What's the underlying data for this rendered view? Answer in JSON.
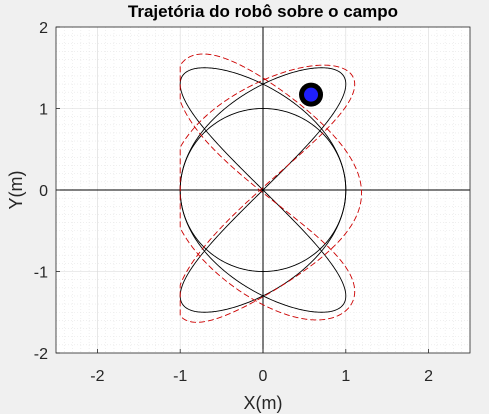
{
  "chart_data": {
    "type": "line",
    "title": "Trajetória do robô sobre o campo",
    "xlabel": "X(m)",
    "ylabel": "Y(m)",
    "xlim": [
      -2.5,
      2.5
    ],
    "ylim": [
      -2,
      2
    ],
    "xticks": [
      "-2",
      "-1",
      "0",
      "1",
      "2"
    ],
    "yticks": [
      "-2",
      "-1",
      "0",
      "1",
      "2"
    ],
    "grid": "minor",
    "series": [
      {
        "style": "solid",
        "color": "#000000",
        "kind": "circle",
        "center": [
          0,
          0
        ],
        "radius": 1
      },
      {
        "style": "solid",
        "color": "#000000",
        "kind": "lissajous",
        "ax": 1,
        "ay": 1.5,
        "fx": 3,
        "fy": 2
      },
      {
        "style": "dashed",
        "color": "#cc0000",
        "kind": "lissajous-noisy",
        "ax": 1.1,
        "ay": 1.6,
        "fx": 3,
        "fy": 2,
        "x_range": [
          -1.0,
          1.22
        ]
      }
    ],
    "robot": {
      "x": 0.58,
      "y": 1.17,
      "fill": "#1f1fff",
      "outline": "#000000"
    }
  }
}
